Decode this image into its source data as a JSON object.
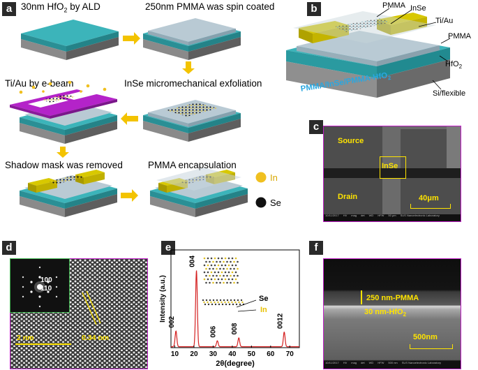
{
  "panel_a": {
    "letter": "a",
    "step1": "30nm HfO",
    "step1_sub": "2",
    "step1_tail": " by ALD",
    "step2": "250nm PMMA was spin coated",
    "step3": "InSe micromechanical exfoliation",
    "step4": "Ti/Au by e-beam",
    "step5": "Shadow mask was removed",
    "step6": "PMMA encapsulation",
    "legend_in": "In",
    "legend_se": "Se",
    "colors": {
      "hfo2": "#39b0b6",
      "si": "#6d6d6d",
      "pmma": "#b4c6d0",
      "tiau": "#d8c800",
      "mask": "#b423c9",
      "arrow": "#f3c300",
      "in_atom": "#f0c020",
      "se_atom": "#111111"
    }
  },
  "panel_b": {
    "letter": "b",
    "label_pmma_top": "PMMA",
    "label_inse": "InSe",
    "label_tiau": "Ti/Au",
    "label_pmma_side": "PMMA",
    "label_hfo2": "HfO",
    "label_hfo2_sub": "2",
    "label_si": "Si/flexible",
    "caption": "PMMA/InSe/PMMA-HfO",
    "caption_sub": "2"
  },
  "panel_c": {
    "letter": "c",
    "label_source": "Source",
    "label_inse": "InSe",
    "label_drain": "Drain",
    "scale": "40μm",
    "footer": [
      "10/11/2017",
      "HV",
      "mag",
      "det",
      "WD",
      "HFW",
      "50 μm",
      "SUS Nanoelectronic Laboratory"
    ]
  },
  "panel_d": {
    "letter": "d",
    "spot_100": "100",
    "spot_110": "110",
    "lattice": "0.34 nm",
    "scale": "2 nm"
  },
  "panel_e": {
    "letter": "e",
    "label_se": "Se",
    "label_in": "In"
  },
  "panel_f": {
    "letter": "f",
    "label_pmma": "250 nm-PMMA",
    "label_hfo2": "30 nm-HfO",
    "label_hfo2_sub": "2",
    "scale": "500nm",
    "footer": [
      "10/11/2017",
      "HV",
      "mag",
      "det",
      "WD",
      "HFW",
      "500 nm",
      "SUS Nanoelectronic Laboratory"
    ]
  },
  "chart_data": {
    "type": "line",
    "title": "",
    "xlabel": "2θ(degree)",
    "ylabel": "Intensity (a.u.)",
    "xlim": [
      8,
      75
    ],
    "ylim": [
      0,
      100
    ],
    "xticks": [
      10,
      20,
      30,
      40,
      50,
      60,
      70
    ],
    "line_color": "#d42020",
    "peaks": [
      {
        "x": 10.6,
        "y": 16,
        "label": "002"
      },
      {
        "x": 21.3,
        "y": 78,
        "label": "004"
      },
      {
        "x": 32.2,
        "y": 6,
        "label": "006"
      },
      {
        "x": 43.4,
        "y": 9,
        "label": "008"
      },
      {
        "x": 67.1,
        "y": 15,
        "label": "0012"
      }
    ],
    "baseline": 1
  }
}
